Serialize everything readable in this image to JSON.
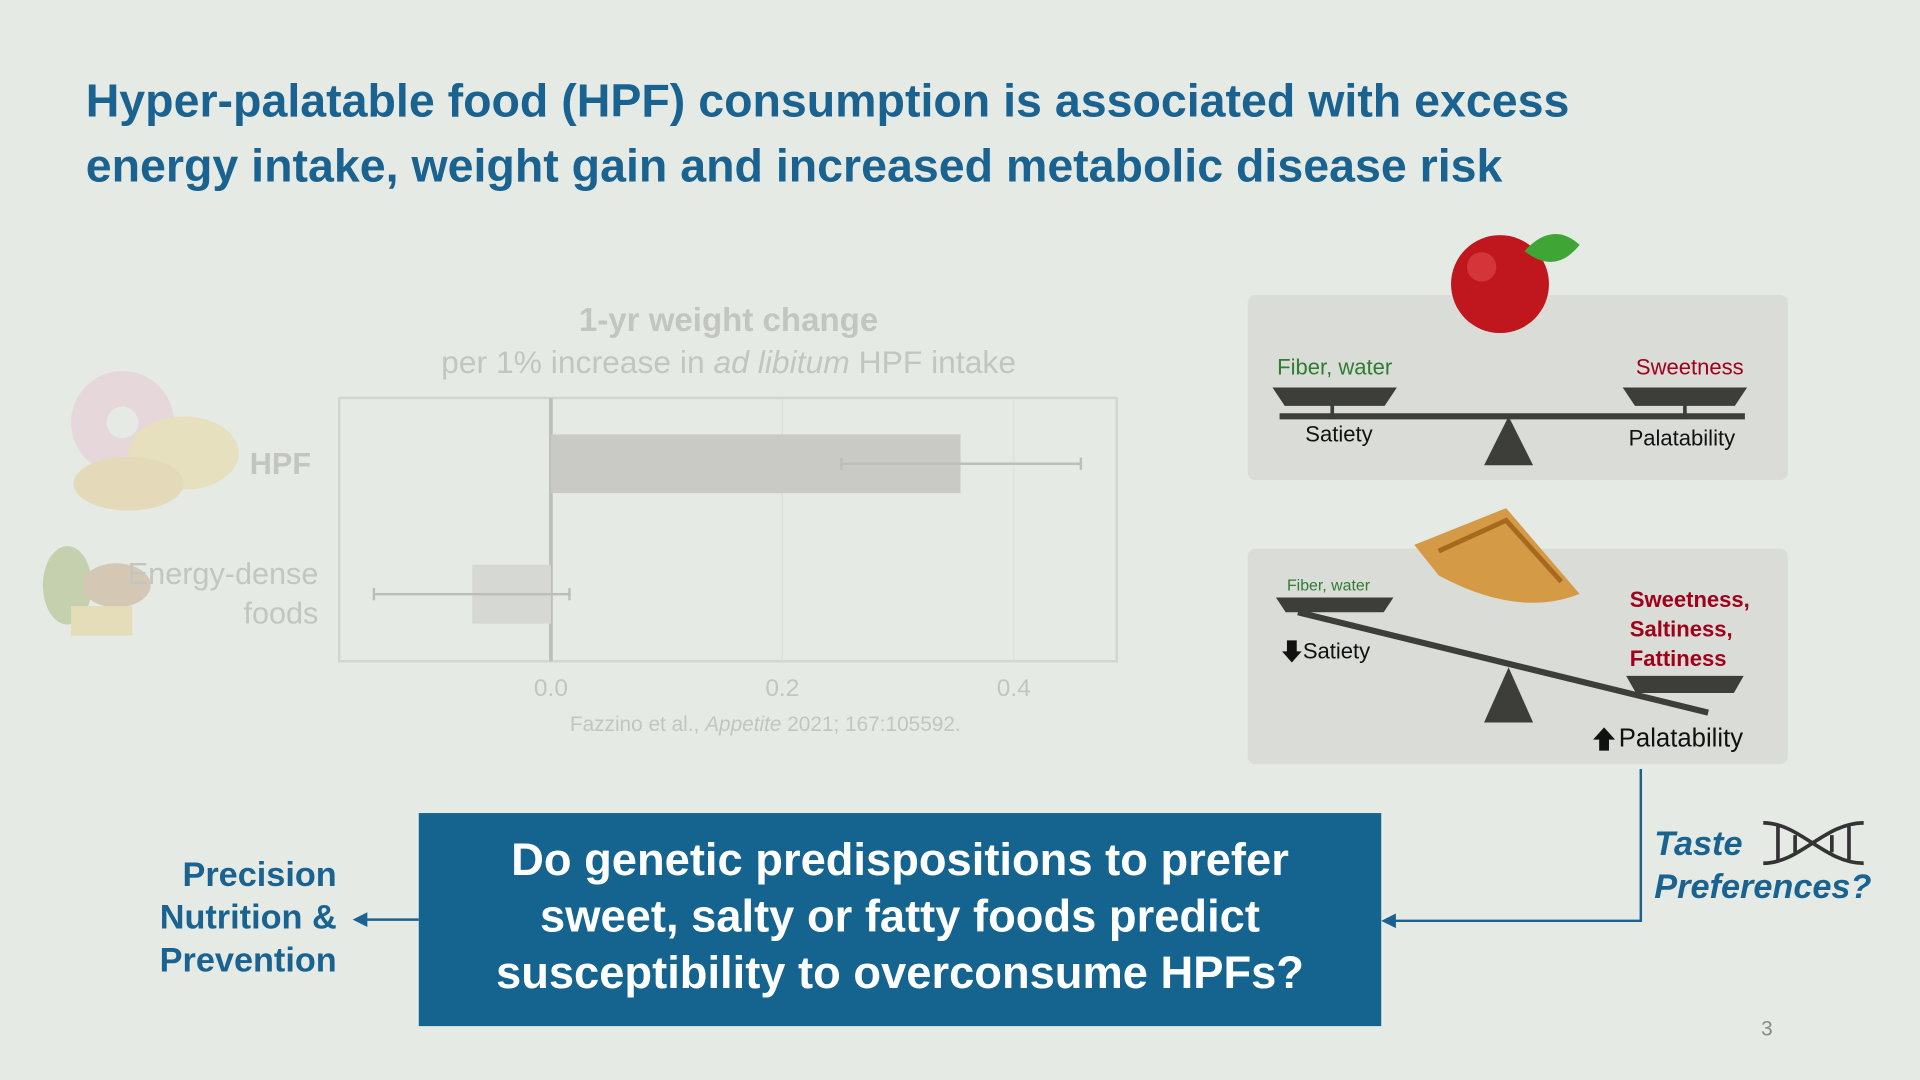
{
  "title": [
    "Hyper-palatable food (HPF) consumption is associated with excess",
    "energy intake, weight gain and increased metabolic disease risk"
  ],
  "chart_data": {
    "type": "bar",
    "orientation": "horizontal",
    "title": "1-yr weight change",
    "subtitle": [
      "per 1% increase in ",
      "ad libitum",
      " HPF intake"
    ],
    "categories": [
      "HPF",
      "Energy-dense foods"
    ],
    "values": [
      0.354,
      -0.068
    ],
    "ci_low": [
      0.251,
      -0.153
    ],
    "ci_high": [
      0.458,
      0.016
    ],
    "colors": [
      "#c9cac6",
      "#d6d8d3"
    ],
    "xlim": [
      -0.183,
      0.489
    ],
    "xticks": [
      {
        "value": 0,
        "label": "0.0"
      },
      0.2,
      0.4
    ],
    "grid": true,
    "source": [
      "Fazzino et al., ",
      "Appetite",
      " 2021; 167:105592."
    ]
  },
  "balance_normal": {
    "left_label": "Fiber, water",
    "right_label": "Sweetness",
    "left_effect": "Satiety",
    "right_effect": "Palatability"
  },
  "balance_hpf": {
    "left_label": "Fiber, water",
    "right_label": [
      "Sweetness,",
      "Saltiness,",
      "Fattiness"
    ],
    "left_effect": "Satiety",
    "right_effect": "Palatability"
  },
  "question": [
    "Do genetic predispositions to prefer",
    "sweet, salty or fatty foods predict",
    "susceptibility to overconsume HPFs?"
  ],
  "outcome": [
    "Precision",
    "Nutrition &",
    "Prevention"
  ],
  "factor": [
    "Taste",
    "Preferences?"
  ],
  "page_number": 3
}
